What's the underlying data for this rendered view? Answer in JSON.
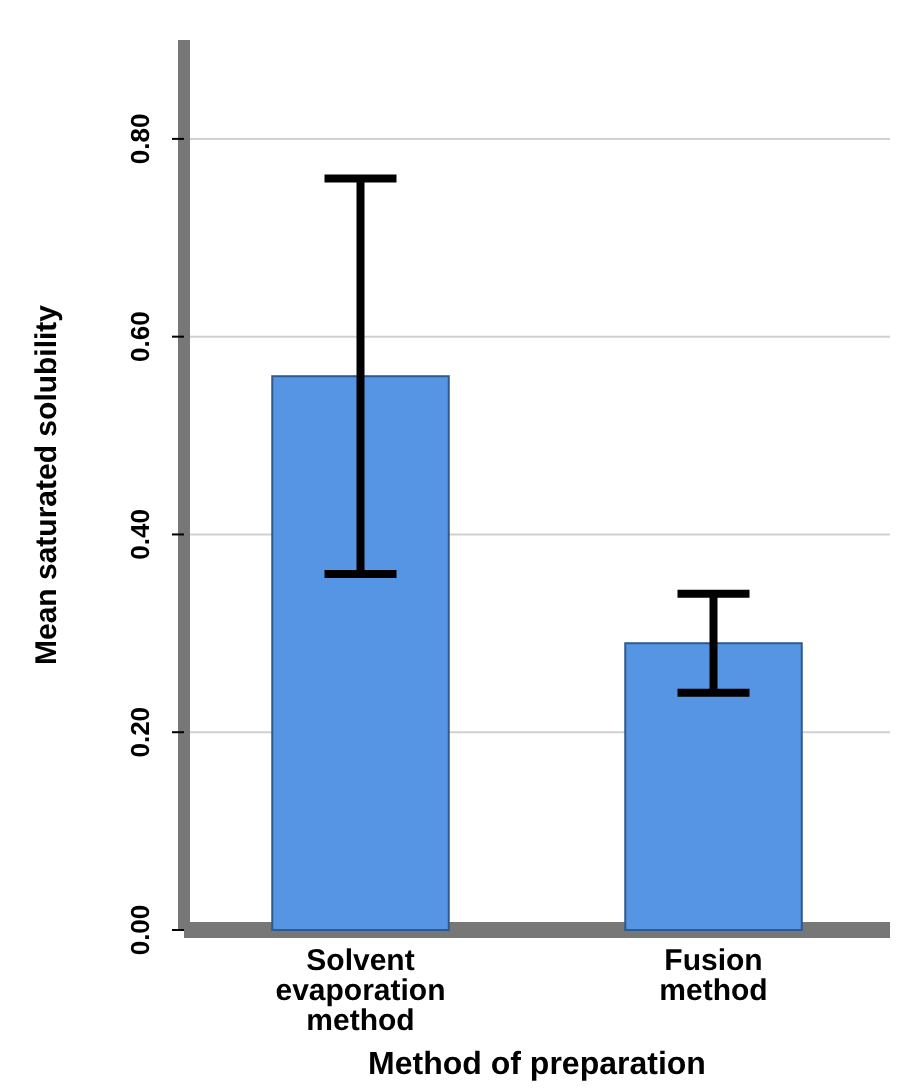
{
  "chart_data": {
    "type": "bar",
    "xlabel": "Method of preparation",
    "ylabel": "Mean saturated solubility",
    "categories": [
      "Solvent evaporation method",
      "Fusion method"
    ],
    "values": [
      0.56,
      0.29
    ],
    "errors": [
      0.2,
      0.05
    ],
    "color": "#5595e3",
    "ylim": [
      0,
      0.9
    ],
    "yticks": [
      {
        "value": 0,
        "label": "0.00"
      },
      {
        "value": 0.2,
        "label": "0.20"
      },
      {
        "value": 0.4,
        "label": "0.40"
      },
      {
        "value": 0.6,
        "label": "0.60"
      },
      {
        "value": 0.8,
        "label": "0.80"
      }
    ],
    "grid": "y"
  }
}
